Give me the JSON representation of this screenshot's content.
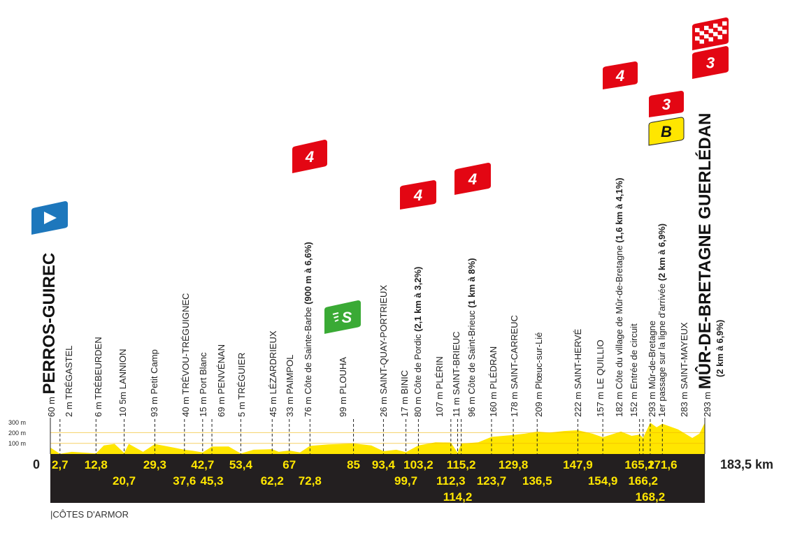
{
  "chart_data": {
    "type": "area",
    "x_unit": "km",
    "y_unit": "m",
    "xlim": [
      0,
      183.5
    ],
    "ylim": [
      0,
      300
    ],
    "y_ticks": [
      "300 m",
      "200 m",
      "100 m"
    ],
    "x_start_label": "0",
    "x_end_label": "183,5 km",
    "fill_color": "#ffe600",
    "band_color": "#231f20",
    "region_label": "|CÔTES D'ARMOR",
    "profile": [
      [
        0,
        60
      ],
      [
        2.7,
        2
      ],
      [
        6,
        20
      ],
      [
        12.8,
        6
      ],
      [
        15,
        80
      ],
      [
        18,
        95
      ],
      [
        20.7,
        10
      ],
      [
        22,
        95
      ],
      [
        26,
        20
      ],
      [
        29.3,
        93
      ],
      [
        33,
        70
      ],
      [
        37.6,
        40
      ],
      [
        40,
        30
      ],
      [
        42.7,
        15
      ],
      [
        45.3,
        69
      ],
      [
        50,
        70
      ],
      [
        53.4,
        5
      ],
      [
        57,
        40
      ],
      [
        62.2,
        45
      ],
      [
        64,
        20
      ],
      [
        67,
        33
      ],
      [
        70,
        15
      ],
      [
        72.8,
        76
      ],
      [
        78,
        90
      ],
      [
        85,
        99
      ],
      [
        90,
        80
      ],
      [
        93.4,
        26
      ],
      [
        97,
        40
      ],
      [
        99.7,
        17
      ],
      [
        103.2,
        80
      ],
      [
        108,
        110
      ],
      [
        112.3,
        107
      ],
      [
        114.2,
        11
      ],
      [
        115.2,
        96
      ],
      [
        120,
        110
      ],
      [
        123.7,
        160
      ],
      [
        129.8,
        178
      ],
      [
        133,
        190
      ],
      [
        136.5,
        209
      ],
      [
        140,
        200
      ],
      [
        144,
        215
      ],
      [
        147.9,
        222
      ],
      [
        152,
        190
      ],
      [
        154.9,
        157
      ],
      [
        160,
        210
      ],
      [
        163,
        170
      ],
      [
        165.2,
        182
      ],
      [
        166.2,
        152
      ],
      [
        168.2,
        293
      ],
      [
        170,
        250
      ],
      [
        171.6,
        283
      ],
      [
        176,
        230
      ],
      [
        180,
        150
      ],
      [
        182,
        190
      ],
      [
        183.5,
        293
      ]
    ],
    "places": [
      {
        "text": "60 m ",
        "name": "PERROS-GUIREC",
        "big": true
      },
      {
        "text": "2 m TRÉGASTEL"
      },
      {
        "text": "6 m TRÉBEURDEN"
      },
      {
        "text": "10 5m LANNION"
      },
      {
        "text": "93 m Petit Camp"
      },
      {
        "text": "40 m TRÉVOU-TRÉGUIGNEC"
      },
      {
        "text": "15 m Port Blanc"
      },
      {
        "text": "69 m PENVÉNAN"
      },
      {
        "text": "5 m TRÉGUIER"
      },
      {
        "text": "45 m LÉZARDRIEUX"
      },
      {
        "text": "33 m PAIMPOL"
      },
      {
        "text": "76 m Côte de Sainte-Barbe ",
        "bold": "(900 m à 6,6%)"
      },
      {
        "text": "99 m PLOUHA"
      },
      {
        "text": "26 m SAINT-QUAY-PORTRIEUX"
      },
      {
        "text": "17 m BINIC"
      },
      {
        "text": "80 m Côte de Pordic ",
        "bold": "(2,1 km à 3,2%)"
      },
      {
        "text": "107 m PLÉRIN"
      },
      {
        "text": "11 m SAINT-BRIEUC"
      },
      {
        "text": "96 m Côte de Saint-Brieuc ",
        "bold": "(1 km à 8%)"
      },
      {
        "text": "160 m PLÉDRAN"
      },
      {
        "text": "178 m SAINT-CARREUC"
      },
      {
        "text": "209 m Plœuc-sur-Lié"
      },
      {
        "text": "222 m SAINT-HERVÉ"
      },
      {
        "text": "157 m LE QUILLIO"
      },
      {
        "text": "182 m Côte du village de Mûr-de-Bretagne ",
        "bold": "(1,6 km à 4,1%)"
      },
      {
        "text": "152 m Entrée de circuit"
      },
      {
        "text": "293 m Mûr-de-Bretagne"
      },
      {
        "text": "1er passage sur la ligne d'arrivée ",
        "bold": "(2 km à 6,9%)"
      },
      {
        "text": "283 m SAINT-MAYEUX"
      },
      {
        "text": "293 m ",
        "name": "MÛR-DE-BRETAGNE GUERLÉDAN",
        "big": true,
        "sub": "(2 km à 6,9%)"
      }
    ],
    "km_markers": [
      {
        "v": 2.7,
        "label": "2,7",
        "row": 1
      },
      {
        "v": 12.8,
        "label": "12,8",
        "row": 1
      },
      {
        "v": 20.7,
        "label": "20,7",
        "row": 2
      },
      {
        "v": 29.3,
        "label": "29,3",
        "row": 1
      },
      {
        "v": 37.6,
        "label": "37,6",
        "row": 2
      },
      {
        "v": 42.7,
        "label": "42,7",
        "row": 1
      },
      {
        "v": 45.3,
        "label": "45,3",
        "row": 2
      },
      {
        "v": 53.4,
        "label": "53,4",
        "row": 1
      },
      {
        "v": 62.2,
        "label": "62,2",
        "row": 2
      },
      {
        "v": 67,
        "label": "67",
        "row": 1
      },
      {
        "v": 72.8,
        "label": "72,8",
        "row": 2
      },
      {
        "v": 85,
        "label": "85",
        "row": 1
      },
      {
        "v": 93.4,
        "label": "93,4",
        "row": 1
      },
      {
        "v": 99.7,
        "label": "99,7",
        "row": 2
      },
      {
        "v": 103.2,
        "label": "103,2",
        "row": 1
      },
      {
        "v": 112.3,
        "label": "112,3",
        "row": 2
      },
      {
        "v": 114.2,
        "label": "114,2",
        "row": 3
      },
      {
        "v": 115.2,
        "label": "115,2",
        "row": 1
      },
      {
        "v": 123.7,
        "label": "123,7",
        "row": 2
      },
      {
        "v": 129.8,
        "label": "129,8",
        "row": 1
      },
      {
        "v": 136.5,
        "label": "136,5",
        "row": 2
      },
      {
        "v": 147.9,
        "label": "147,9",
        "row": 1
      },
      {
        "v": 154.9,
        "label": "154,9",
        "row": 2
      },
      {
        "v": 165.2,
        "label": "165,2",
        "row": 1
      },
      {
        "v": 166.2,
        "label": "166,2",
        "row": 2
      },
      {
        "v": 168.2,
        "label": "168,2",
        "row": 3
      },
      {
        "v": 171.6,
        "label": "171,6",
        "row": 1
      }
    ],
    "markers": [
      {
        "type": "start-flag-icon",
        "color": "#1d77bc"
      },
      {
        "type": "sprint-icon",
        "label": "S",
        "color": "#3aaa35"
      },
      {
        "type": "kom-4-icon",
        "label": "4",
        "color": "#e30613"
      },
      {
        "type": "kom-4-icon",
        "label": "4",
        "color": "#e30613"
      },
      {
        "type": "kom-4-icon",
        "label": "4",
        "color": "#e30613"
      },
      {
        "type": "kom-4-icon",
        "label": "4",
        "color": "#e30613"
      },
      {
        "type": "kom-3-icon",
        "label": "3",
        "color": "#e30613"
      },
      {
        "type": "bonus-icon",
        "label": "B",
        "color": "#ffe600"
      },
      {
        "type": "kom-3-icon",
        "label": "3",
        "color": "#e30613"
      },
      {
        "type": "finish-flag-icon",
        "color": "#e30613"
      }
    ]
  }
}
